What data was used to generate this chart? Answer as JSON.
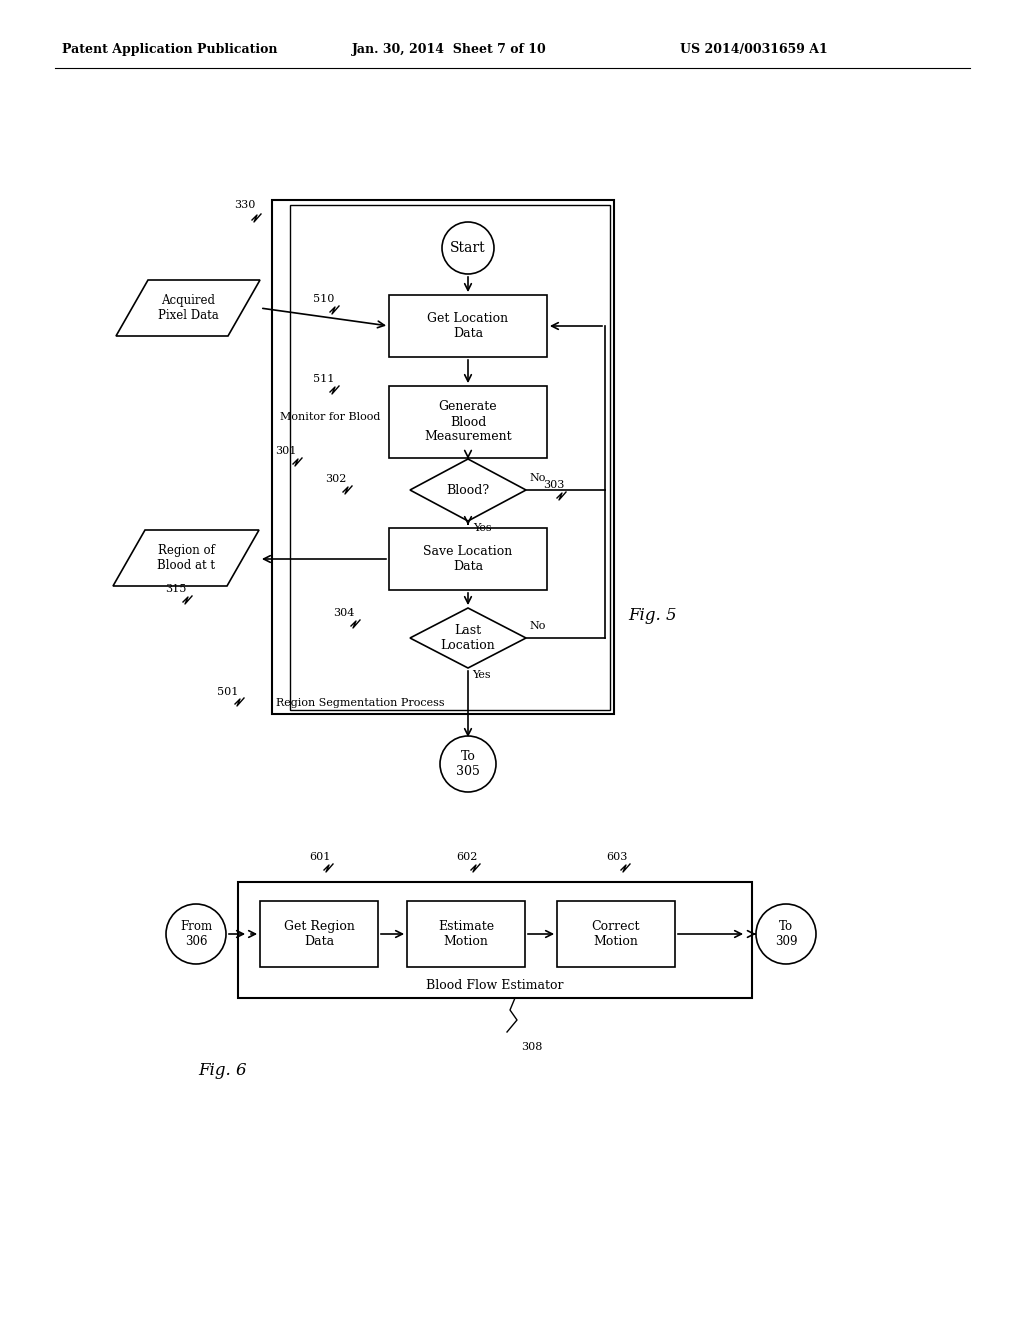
{
  "bg_color": "#ffffff",
  "header_text": "Patent Application Publication",
  "header_date": "Jan. 30, 2014  Sheet 7 of 10",
  "header_patent": "US 2014/0031659 A1",
  "fig5_label": "Fig. 5",
  "fig6_label": "Fig. 6"
}
